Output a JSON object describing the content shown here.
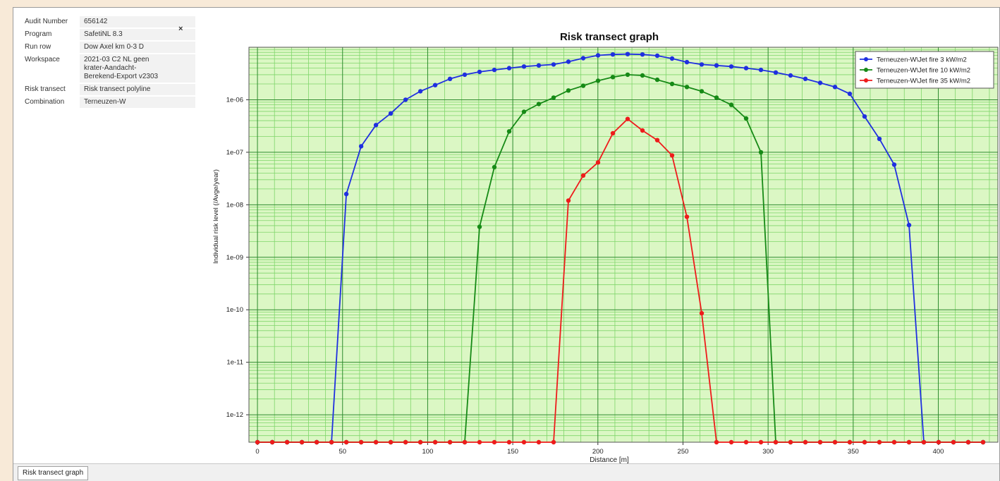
{
  "info": {
    "rows": [
      {
        "key": "Audit Number",
        "value": "656142"
      },
      {
        "key": "Program",
        "value": "SafetiNL 8.3"
      },
      {
        "key": "Run row",
        "value": "Dow Axel km 0-3 D"
      },
      {
        "key": "Workspace",
        "value": "2021-03 C2 NL geen\nkrater-Aandacht-\nBerekend-Export v2303"
      },
      {
        "key": "Risk transect",
        "value": "Risk transect polyline"
      },
      {
        "key": "Combination",
        "value": "Terneuzen-W"
      }
    ],
    "close_glyph": "×"
  },
  "bottom_tab": "Risk transect graph",
  "colors": {
    "plot_bg": "#dbf7c4",
    "major_grid": "#2e8b2e",
    "minor_grid": "#7fd66a",
    "blue": "#1f2fe0",
    "green": "#168a16",
    "red": "#ee1b1b"
  },
  "chart_data": {
    "type": "line",
    "title": "Risk transect graph",
    "xlabel": "Distance [m]",
    "ylabel": "Individual risk level (/Avge/year)",
    "yscale": "log",
    "xlim": [
      -5,
      435
    ],
    "ylim": [
      3e-13,
      1e-05
    ],
    "floor_value": 3e-13,
    "xticks": [
      0,
      50,
      100,
      150,
      200,
      250,
      300,
      350,
      400
    ],
    "yticks": [
      {
        "value": 1e-12,
        "label": "1e-12"
      },
      {
        "value": 1e-11,
        "label": "1e-11"
      },
      {
        "value": 1e-10,
        "label": "1e-10"
      },
      {
        "value": 1e-09,
        "label": "1e-09"
      },
      {
        "value": 1e-08,
        "label": "1e-08"
      },
      {
        "value": 1e-07,
        "label": "1e-07"
      },
      {
        "value": 1e-06,
        "label": "1e-06"
      }
    ],
    "legend_position": "top-right",
    "grid": true,
    "series": [
      {
        "name": "Terneuzen-W\\Jet fire 3 kW/m2",
        "color": "#1f2fe0",
        "points": [
          [
            0,
            3e-13
          ],
          [
            8.7,
            3e-13
          ],
          [
            17.4,
            3e-13
          ],
          [
            26.1,
            3e-13
          ],
          [
            34.8,
            3e-13
          ],
          [
            43.5,
            3e-13
          ],
          [
            52.2,
            1.6e-08
          ],
          [
            60.9,
            1.3e-07
          ],
          [
            69.6,
            3.3e-07
          ],
          [
            78.3,
            5.5e-07
          ],
          [
            87,
            1e-06
          ],
          [
            95.7,
            1.45e-06
          ],
          [
            104.4,
            1.9e-06
          ],
          [
            113.1,
            2.5e-06
          ],
          [
            121.8,
            3e-06
          ],
          [
            130.5,
            3.4e-06
          ],
          [
            139.2,
            3.7e-06
          ],
          [
            147.9,
            4e-06
          ],
          [
            156.6,
            4.3e-06
          ],
          [
            165.3,
            4.5e-06
          ],
          [
            174,
            4.7e-06
          ],
          [
            182.7,
            5.3e-06
          ],
          [
            191.4,
            6.2e-06
          ],
          [
            200.1,
            7e-06
          ],
          [
            208.8,
            7.3e-06
          ],
          [
            217.5,
            7.4e-06
          ],
          [
            226.2,
            7.3e-06
          ],
          [
            234.9,
            6.9e-06
          ],
          [
            243.6,
            6.1e-06
          ],
          [
            252.3,
            5.2e-06
          ],
          [
            261,
            4.7e-06
          ],
          [
            269.7,
            4.5e-06
          ],
          [
            278.4,
            4.3e-06
          ],
          [
            287.1,
            4e-06
          ],
          [
            295.8,
            3.7e-06
          ],
          [
            304.5,
            3.3e-06
          ],
          [
            313.2,
            2.9e-06
          ],
          [
            321.9,
            2.5e-06
          ],
          [
            330.6,
            2.1e-06
          ],
          [
            339.3,
            1.75e-06
          ],
          [
            348,
            1.3e-06
          ],
          [
            356.7,
            4.8e-07
          ],
          [
            365.4,
            1.8e-07
          ],
          [
            374.1,
            5.8e-08
          ],
          [
            382.8,
            4.1e-09
          ],
          [
            391.5,
            3e-13
          ],
          [
            400.2,
            3e-13
          ],
          [
            408.9,
            3e-13
          ],
          [
            417.6,
            3e-13
          ],
          [
            426.3,
            3e-13
          ]
        ]
      },
      {
        "name": "Terneuzen-W\\Jet fire 10 kW/m2",
        "color": "#168a16",
        "points": [
          [
            0,
            3e-13
          ],
          [
            8.7,
            3e-13
          ],
          [
            17.4,
            3e-13
          ],
          [
            26.1,
            3e-13
          ],
          [
            34.8,
            3e-13
          ],
          [
            43.5,
            3e-13
          ],
          [
            52.2,
            3e-13
          ],
          [
            60.9,
            3e-13
          ],
          [
            69.6,
            3e-13
          ],
          [
            78.3,
            3e-13
          ],
          [
            87,
            3e-13
          ],
          [
            95.7,
            3e-13
          ],
          [
            104.4,
            3e-13
          ],
          [
            113.1,
            3e-13
          ],
          [
            121.8,
            3e-13
          ],
          [
            130.5,
            3.8e-09
          ],
          [
            139.2,
            5.2e-08
          ],
          [
            147.9,
            2.5e-07
          ],
          [
            156.6,
            5.9e-07
          ],
          [
            165.3,
            8.3e-07
          ],
          [
            174,
            1.1e-06
          ],
          [
            182.7,
            1.5e-06
          ],
          [
            191.4,
            1.85e-06
          ],
          [
            200.1,
            2.3e-06
          ],
          [
            208.8,
            2.7e-06
          ],
          [
            217.5,
            3e-06
          ],
          [
            226.2,
            2.9e-06
          ],
          [
            234.9,
            2.4e-06
          ],
          [
            243.6,
            2e-06
          ],
          [
            252.3,
            1.75e-06
          ],
          [
            261,
            1.45e-06
          ],
          [
            269.7,
            1.1e-06
          ],
          [
            278.4,
            8e-07
          ],
          [
            287.1,
            4.4e-07
          ],
          [
            295.8,
            1e-07
          ],
          [
            304.5,
            3e-13
          ],
          [
            313.2,
            3e-13
          ],
          [
            321.9,
            3e-13
          ],
          [
            330.6,
            3e-13
          ],
          [
            339.3,
            3e-13
          ],
          [
            348,
            3e-13
          ],
          [
            356.7,
            3e-13
          ],
          [
            365.4,
            3e-13
          ],
          [
            374.1,
            3e-13
          ],
          [
            382.8,
            3e-13
          ],
          [
            391.5,
            3e-13
          ],
          [
            400.2,
            3e-13
          ],
          [
            408.9,
            3e-13
          ],
          [
            417.6,
            3e-13
          ],
          [
            426.3,
            3e-13
          ]
        ]
      },
      {
        "name": "Terneuzen-W\\Jet fire 35 kW/m2",
        "color": "#ee1b1b",
        "points": [
          [
            0,
            3e-13
          ],
          [
            8.7,
            3e-13
          ],
          [
            17.4,
            3e-13
          ],
          [
            26.1,
            3e-13
          ],
          [
            34.8,
            3e-13
          ],
          [
            43.5,
            3e-13
          ],
          [
            52.2,
            3e-13
          ],
          [
            60.9,
            3e-13
          ],
          [
            69.6,
            3e-13
          ],
          [
            78.3,
            3e-13
          ],
          [
            87,
            3e-13
          ],
          [
            95.7,
            3e-13
          ],
          [
            104.4,
            3e-13
          ],
          [
            113.1,
            3e-13
          ],
          [
            121.8,
            3e-13
          ],
          [
            130.5,
            3e-13
          ],
          [
            139.2,
            3e-13
          ],
          [
            147.9,
            3e-13
          ],
          [
            156.6,
            3e-13
          ],
          [
            165.3,
            3e-13
          ],
          [
            174,
            3e-13
          ],
          [
            182.7,
            1.2e-08
          ],
          [
            191.4,
            3.6e-08
          ],
          [
            200.1,
            6.4e-08
          ],
          [
            208.8,
            2.3e-07
          ],
          [
            217.5,
            4.3e-07
          ],
          [
            226.2,
            2.6e-07
          ],
          [
            234.9,
            1.7e-07
          ],
          [
            243.6,
            8.7e-08
          ],
          [
            252.3,
            5.9e-09
          ],
          [
            261,
            8.6e-11
          ],
          [
            269.7,
            3e-13
          ],
          [
            278.4,
            3e-13
          ],
          [
            287.1,
            3e-13
          ],
          [
            295.8,
            3e-13
          ],
          [
            304.5,
            3e-13
          ],
          [
            313.2,
            3e-13
          ],
          [
            321.9,
            3e-13
          ],
          [
            330.6,
            3e-13
          ],
          [
            339.3,
            3e-13
          ],
          [
            348,
            3e-13
          ],
          [
            356.7,
            3e-13
          ],
          [
            365.4,
            3e-13
          ],
          [
            374.1,
            3e-13
          ],
          [
            382.8,
            3e-13
          ],
          [
            391.5,
            3e-13
          ],
          [
            400.2,
            3e-13
          ],
          [
            408.9,
            3e-13
          ],
          [
            417.6,
            3e-13
          ],
          [
            426.3,
            3e-13
          ]
        ]
      }
    ]
  }
}
